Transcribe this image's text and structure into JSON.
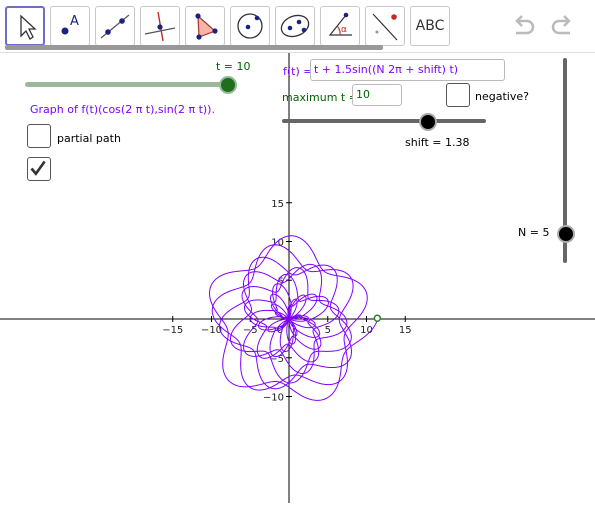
{
  "toolbar": {
    "tools": [
      {
        "name": "move-tool",
        "icon": "cursor-arrow-icon"
      },
      {
        "name": "point-tool",
        "icon": "point-icon",
        "letter": "A"
      },
      {
        "name": "line-tool",
        "icon": "line-through-points-icon"
      },
      {
        "name": "perpendicular-tool",
        "icon": "perpendicular-line-icon"
      },
      {
        "name": "polygon-tool",
        "icon": "polygon-icon"
      },
      {
        "name": "circle-tool",
        "icon": "circle-center-point-icon"
      },
      {
        "name": "ellipse-tool",
        "icon": "ellipse-icon"
      },
      {
        "name": "angle-tool",
        "icon": "angle-icon",
        "letter": "α"
      },
      {
        "name": "reflect-tool",
        "icon": "reflect-icon"
      },
      {
        "name": "text-tool",
        "icon": "text-icon",
        "label": "ABC"
      }
    ],
    "undo_icon": "undo-icon",
    "redo_icon": "redo-icon"
  },
  "sliders": {
    "t": {
      "label": "t = 10",
      "value": 10,
      "fraction": 1.0
    },
    "shift": {
      "label": "shift = 1.38",
      "value": 1.38
    },
    "N": {
      "label": "N = 5",
      "value": 5
    }
  },
  "texts": {
    "graph_caption": "Graph of f(t)(cos(2 π t),sin(2 π t)).",
    "partial_path": "partial path",
    "negative": "negative?",
    "f_label": "f(t) =",
    "f_value": "t + 1.5sin((N 2π + shift) t)",
    "max_t_label": "maximum t =",
    "max_t_value": "10"
  },
  "checkboxes": {
    "partial_path": false,
    "second": true,
    "negative": false
  },
  "chart_data": {
    "type": "line",
    "title": "",
    "xlabel": "",
    "ylabel": "",
    "x_ticks": [
      -15,
      -10,
      -5,
      0,
      5,
      10,
      15
    ],
    "y_ticks": [
      -10,
      -5,
      5,
      10,
      15
    ],
    "series": [
      {
        "function": "r(t) = t + 1.5 sin((N·2π + shift)·t), (x, y) = r(t)·(cos 2πt, sin 2πt)",
        "t_range": [
          0,
          10
        ],
        "N": 5,
        "shift": 1.38
      }
    ],
    "end_point": {
      "x": 11.4,
      "y": 0.1
    },
    "colors": {
      "curve": "#8000ff",
      "axis": "#000000",
      "slider": "#9ab89a",
      "label_green": "#006400",
      "label_purple": "#8000ff"
    }
  }
}
